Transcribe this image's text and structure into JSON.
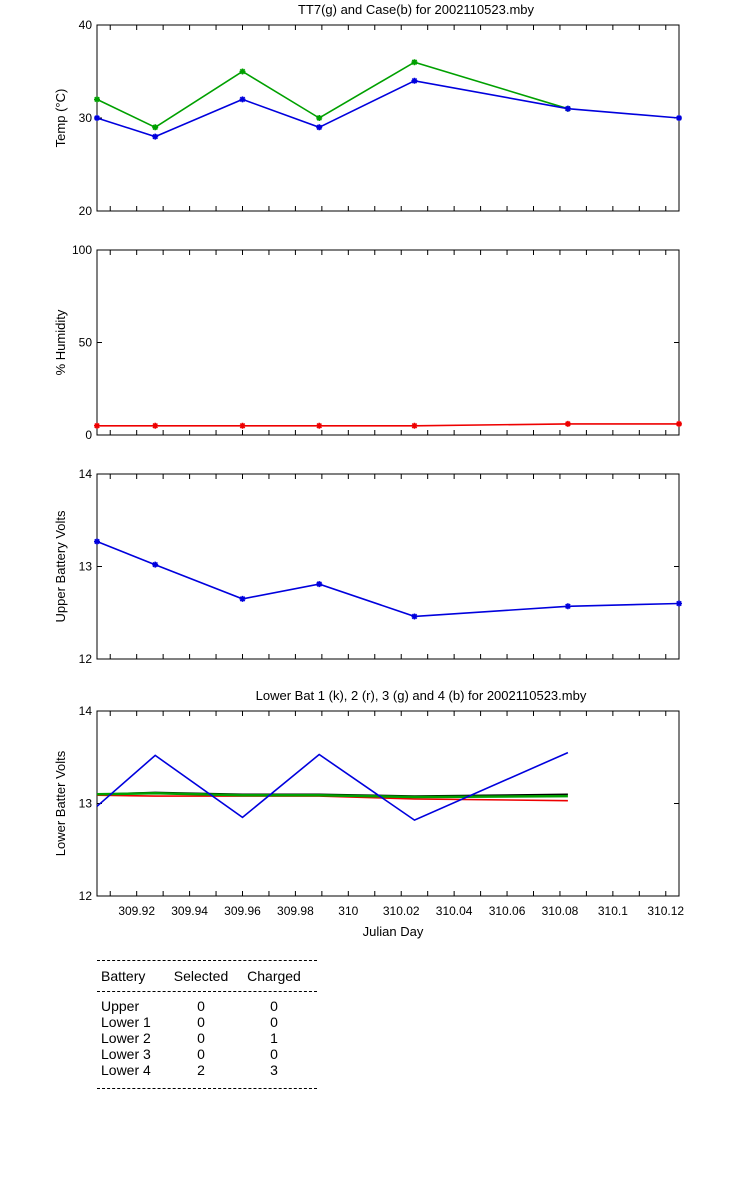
{
  "chart_data": [
    {
      "type": "line",
      "title": "TT7(g) and Case(b) for 2002110523.mby",
      "xlabel": "",
      "ylabel": "Temp  (°C)",
      "xlim": [
        309.905,
        310.125
      ],
      "ylim": [
        20,
        40
      ],
      "yticks": [
        "20",
        "30",
        "40"
      ],
      "xtick_labels_shown": false,
      "series": [
        {
          "color": "#00a000",
          "markers": true,
          "points": [
            [
              309.905,
              32
            ],
            [
              309.927,
              29
            ],
            [
              309.96,
              35
            ],
            [
              309.989,
              30
            ],
            [
              310.025,
              36
            ],
            [
              310.083,
              31
            ]
          ]
        },
        {
          "color": "#0000dd",
          "markers": true,
          "points": [
            [
              309.905,
              30
            ],
            [
              309.927,
              28
            ],
            [
              309.96,
              32
            ],
            [
              309.989,
              29
            ],
            [
              310.025,
              34
            ],
            [
              310.083,
              31
            ],
            [
              310.125,
              30
            ]
          ]
        }
      ]
    },
    {
      "type": "line",
      "title": "",
      "xlabel": "",
      "ylabel": "% Humidity",
      "xlim": [
        309.905,
        310.125
      ],
      "ylim": [
        0,
        100
      ],
      "yticks": [
        "0",
        "50",
        "100"
      ],
      "xtick_labels_shown": false,
      "series": [
        {
          "color": "#ee0000",
          "markers": true,
          "points": [
            [
              309.905,
              5
            ],
            [
              309.927,
              5
            ],
            [
              309.96,
              5
            ],
            [
              309.989,
              5
            ],
            [
              310.025,
              5
            ],
            [
              310.083,
              6
            ],
            [
              310.125,
              6
            ]
          ]
        }
      ]
    },
    {
      "type": "line",
      "title": "",
      "xlabel": "",
      "ylabel": "Upper Battery Volts",
      "xlim": [
        309.905,
        310.125
      ],
      "ylim": [
        12,
        14
      ],
      "yticks": [
        "12",
        "13",
        "14"
      ],
      "xtick_labels_shown": false,
      "series": [
        {
          "color": "#0000dd",
          "markers": true,
          "points": [
            [
              309.905,
              13.27
            ],
            [
              309.927,
              13.02
            ],
            [
              309.96,
              12.65
            ],
            [
              309.989,
              12.81
            ],
            [
              310.025,
              12.46
            ],
            [
              310.083,
              12.57
            ],
            [
              310.125,
              12.6
            ]
          ]
        }
      ]
    },
    {
      "type": "line",
      "title": "Lower Bat 1 (k), 2 (r), 3 (g) and 4 (b) for 2002110523.mby",
      "xlabel": "Julian Day",
      "ylabel": "Lower Batter Volts",
      "xlim": [
        309.905,
        310.125
      ],
      "ylim": [
        12,
        14
      ],
      "yticks": [
        "12",
        "13",
        "14"
      ],
      "xticks": [
        {
          "value": 309.92,
          "label": "309.92"
        },
        {
          "value": 309.94,
          "label": "309.94"
        },
        {
          "value": 309.96,
          "label": "309.96"
        },
        {
          "value": 309.98,
          "label": "309.98"
        },
        {
          "value": 310.0,
          "label": "310"
        },
        {
          "value": 310.02,
          "label": "310.02"
        },
        {
          "value": 310.04,
          "label": "310.04"
        },
        {
          "value": 310.06,
          "label": "310.06"
        },
        {
          "value": 310.08,
          "label": "310.08"
        },
        {
          "value": 310.1,
          "label": "310.1"
        },
        {
          "value": 310.12,
          "label": "310.12"
        }
      ],
      "xtick_labels_shown": true,
      "series": [
        {
          "color": "#000000",
          "markers": false,
          "points": [
            [
              309.905,
              13.1
            ],
            [
              309.927,
              13.12
            ],
            [
              309.96,
              13.1
            ],
            [
              309.989,
              13.1
            ],
            [
              310.025,
              13.08
            ],
            [
              310.083,
              13.1
            ]
          ]
        },
        {
          "color": "#ee0000",
          "markers": false,
          "points": [
            [
              309.905,
              13.09
            ],
            [
              309.927,
              13.08
            ],
            [
              309.96,
              13.08
            ],
            [
              309.989,
              13.08
            ],
            [
              310.025,
              13.05
            ],
            [
              310.083,
              13.03
            ]
          ]
        },
        {
          "color": "#00a000",
          "markers": false,
          "width": 2.5,
          "points": [
            [
              309.905,
              13.1
            ],
            [
              309.927,
              13.11
            ],
            [
              309.96,
              13.09
            ],
            [
              309.989,
              13.09
            ],
            [
              310.025,
              13.07
            ],
            [
              310.083,
              13.08
            ]
          ]
        },
        {
          "color": "#0000dd",
          "markers": false,
          "points": [
            [
              309.905,
              12.97
            ],
            [
              309.927,
              13.52
            ],
            [
              309.96,
              12.85
            ],
            [
              309.989,
              13.53
            ],
            [
              310.025,
              12.82
            ],
            [
              310.083,
              13.55
            ]
          ]
        }
      ]
    }
  ],
  "battery_table": {
    "headers": [
      "Battery",
      "Selected",
      "Charged"
    ],
    "rows": [
      [
        "Upper",
        "0",
        "0"
      ],
      [
        "Lower 1",
        "0",
        "0"
      ],
      [
        "Lower 2",
        "0",
        "1"
      ],
      [
        "Lower 3",
        "0",
        "0"
      ],
      [
        "Lower 4",
        "2",
        "3"
      ]
    ]
  }
}
